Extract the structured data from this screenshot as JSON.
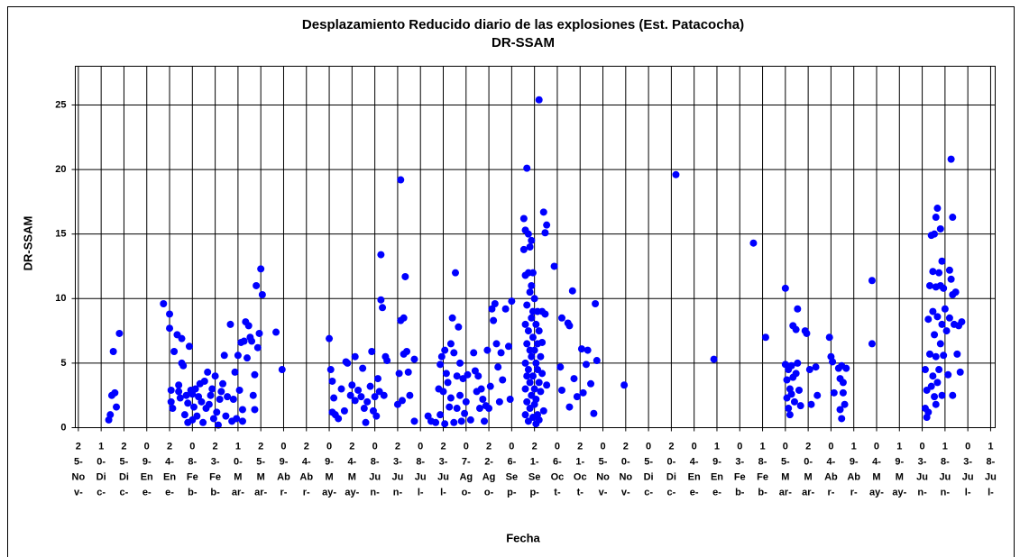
{
  "chart_data": {
    "type": "scatter",
    "title": "Desplazamiento Reducido diario de las explosiones (Est. Patacocha)",
    "subtitle": "DR-SSAM",
    "x_label": "Fecha",
    "y_label": "DR-SSAM",
    "color": "#0000ff",
    "grid": true,
    "xlim": [
      -2,
      603
    ],
    "ylim": [
      0,
      28
    ],
    "yticks": [
      0,
      5,
      10,
      15,
      20,
      25
    ],
    "xticks": [
      {
        "value": 0,
        "label": [
          "2",
          "5-",
          "No",
          "v-"
        ]
      },
      {
        "value": 15,
        "label": [
          "1",
          "0-",
          "Di",
          "c-"
        ]
      },
      {
        "value": 30,
        "label": [
          "2",
          "5-",
          "Di",
          "c-"
        ]
      },
      {
        "value": 45,
        "label": [
          "0",
          "9-",
          "En",
          "e-"
        ]
      },
      {
        "value": 60,
        "label": [
          "2",
          "4-",
          "En",
          "e-"
        ]
      },
      {
        "value": 75,
        "label": [
          "0",
          "8-",
          "Fe",
          "b-"
        ]
      },
      {
        "value": 90,
        "label": [
          "2",
          "3-",
          "Fe",
          "b-"
        ]
      },
      {
        "value": 105,
        "label": [
          "1",
          "0-",
          "M",
          "ar-"
        ]
      },
      {
        "value": 120,
        "label": [
          "2",
          "5-",
          "M",
          "ar-"
        ]
      },
      {
        "value": 135,
        "label": [
          "0",
          "9-",
          "Ab",
          "r-"
        ]
      },
      {
        "value": 150,
        "label": [
          "2",
          "4-",
          "Ab",
          "r-"
        ]
      },
      {
        "value": 165,
        "label": [
          "0",
          "9-",
          "M",
          "ay-"
        ]
      },
      {
        "value": 180,
        "label": [
          "2",
          "4-",
          "M",
          "ay-"
        ]
      },
      {
        "value": 195,
        "label": [
          "0",
          "8-",
          "Ju",
          "n-"
        ]
      },
      {
        "value": 210,
        "label": [
          "2",
          "3-",
          "Ju",
          "n-"
        ]
      },
      {
        "value": 225,
        "label": [
          "0",
          "8-",
          "Ju",
          "l-"
        ]
      },
      {
        "value": 240,
        "label": [
          "2",
          "3-",
          "Ju",
          "l-"
        ]
      },
      {
        "value": 255,
        "label": [
          "0",
          "7-",
          "Ag",
          "o-"
        ]
      },
      {
        "value": 270,
        "label": [
          "2",
          "2-",
          "Ag",
          "o-"
        ]
      },
      {
        "value": 285,
        "label": [
          "0",
          "6-",
          "Se",
          "p-"
        ]
      },
      {
        "value": 300,
        "label": [
          "2",
          "1-",
          "Se",
          "p-"
        ]
      },
      {
        "value": 315,
        "label": [
          "0",
          "6-",
          "Oc",
          "t-"
        ]
      },
      {
        "value": 330,
        "label": [
          "2",
          "1-",
          "Oc",
          "t-"
        ]
      },
      {
        "value": 345,
        "label": [
          "0",
          "5-",
          "No",
          "v-"
        ]
      },
      {
        "value": 360,
        "label": [
          "2",
          "0-",
          "No",
          "v-"
        ]
      },
      {
        "value": 375,
        "label": [
          "0",
          "5-",
          "Di",
          "c-"
        ]
      },
      {
        "value": 390,
        "label": [
          "2",
          "0-",
          "Di",
          "c-"
        ]
      },
      {
        "value": 405,
        "label": [
          "0",
          "4-",
          "En",
          "e-"
        ]
      },
      {
        "value": 420,
        "label": [
          "1",
          "9-",
          "En",
          "e-"
        ]
      },
      {
        "value": 435,
        "label": [
          "0",
          "3-",
          "Fe",
          "b-"
        ]
      },
      {
        "value": 450,
        "label": [
          "1",
          "8-",
          "Fe",
          "b-"
        ]
      },
      {
        "value": 465,
        "label": [
          "0",
          "5-",
          "M",
          "ar-"
        ]
      },
      {
        "value": 480,
        "label": [
          "2",
          "0-",
          "M",
          "ar-"
        ]
      },
      {
        "value": 495,
        "label": [
          "0",
          "4-",
          "Ab",
          "r-"
        ]
      },
      {
        "value": 510,
        "label": [
          "1",
          "9-",
          "Ab",
          "r-"
        ]
      },
      {
        "value": 525,
        "label": [
          "0",
          "4-",
          "M",
          "ay-"
        ]
      },
      {
        "value": 540,
        "label": [
          "1",
          "9-",
          "M",
          "ay-"
        ]
      },
      {
        "value": 555,
        "label": [
          "0",
          "3-",
          "Ju",
          "n-"
        ]
      },
      {
        "value": 570,
        "label": [
          "1",
          "8-",
          "Ju",
          "n-"
        ]
      },
      {
        "value": 585,
        "label": [
          "0",
          "3-",
          "Ju",
          "l-"
        ]
      },
      {
        "value": 600,
        "label": [
          "1",
          "8-",
          "Ju",
          "l-"
        ]
      }
    ],
    "x": [
      20,
      21,
      22,
      23,
      24,
      25,
      27,
      56,
      60,
      60,
      61,
      61,
      62,
      63,
      65,
      66,
      66,
      67,
      68,
      68,
      69,
      70,
      71,
      72,
      72,
      73,
      74,
      75,
      75,
      76,
      77,
      78,
      79,
      80,
      81,
      82,
      83,
      84,
      85,
      86,
      87,
      88,
      89,
      90,
      91,
      92,
      93,
      94,
      95,
      96,
      97,
      98,
      100,
      101,
      102,
      103,
      104,
      105,
      106,
      107,
      108,
      108,
      109,
      110,
      111,
      112,
      113,
      114,
      115,
      116,
      116,
      117,
      118,
      119,
      120,
      121,
      130,
      134,
      165,
      166,
      167,
      167,
      168,
      169,
      171,
      173,
      175,
      176,
      177,
      179,
      180,
      182,
      182,
      184,
      186,
      187,
      188,
      189,
      190,
      192,
      193,
      194,
      195,
      196,
      197,
      198,
      199,
      199,
      200,
      201,
      202,
      203,
      210,
      211,
      212,
      212,
      213,
      214,
      214,
      215,
      216,
      217,
      218,
      221,
      221,
      230,
      232,
      235,
      237,
      238,
      238,
      239,
      240,
      241,
      241,
      242,
      243,
      244,
      245,
      245,
      246,
      247,
      247,
      248,
      249,
      249,
      250,
      251,
      251,
      252,
      253,
      254,
      255,
      256,
      258,
      260,
      261,
      262,
      263,
      264,
      265,
      266,
      267,
      268,
      269,
      270,
      271,
      272,
      273,
      274,
      275,
      276,
      277,
      278,
      279,
      281,
      283,
      284,
      285,
      293,
      293,
      294,
      294,
      294,
      294,
      294,
      294,
      295,
      295,
      295,
      295,
      295,
      296,
      296,
      296,
      296,
      296,
      297,
      297,
      297,
      297,
      297,
      298,
      298,
      298,
      298,
      298,
      299,
      299,
      299,
      299,
      299,
      300,
      300,
      300,
      300,
      301,
      301,
      301,
      301,
      302,
      302,
      302,
      302,
      303,
      303,
      303,
      303,
      304,
      304,
      305,
      305,
      305,
      306,
      306,
      307,
      307,
      308,
      308,
      313,
      317,
      318,
      318,
      322,
      323,
      323,
      325,
      326,
      328,
      331,
      332,
      334,
      335,
      337,
      339,
      340,
      341,
      359,
      393,
      418,
      444,
      452,
      465,
      465,
      466,
      466,
      467,
      467,
      468,
      468,
      469,
      469,
      470,
      470,
      471,
      472,
      472,
      473,
      473,
      474,
      475,
      478,
      479,
      481,
      482,
      485,
      486,
      494,
      495,
      496,
      497,
      500,
      501,
      501,
      502,
      502,
      503,
      503,
      504,
      505,
      522,
      522,
      557,
      557,
      558,
      558,
      559,
      559,
      560,
      560,
      561,
      561,
      562,
      562,
      562,
      563,
      563,
      563,
      564,
      564,
      564,
      564,
      565,
      565,
      565,
      566,
      566,
      567,
      567,
      567,
      568,
      568,
      568,
      569,
      569,
      570,
      571,
      572,
      573,
      573,
      574,
      574,
      575,
      575,
      575,
      576,
      577,
      578,
      579,
      580,
      581
    ],
    "values": [
      0.6,
      1,
      2.5,
      5.9,
      2.7,
      1.6,
      7.3,
      9.6,
      8.8,
      7.7,
      2.9,
      2,
      1.5,
      5.9,
      7.2,
      2.8,
      3.3,
      2.3,
      6.9,
      5,
      4.8,
      1,
      2.5,
      0.4,
      1.9,
      6.3,
      2.9,
      2.6,
      0.6,
      1.6,
      3,
      0.9,
      2.4,
      3.4,
      2,
      0.4,
      3.6,
      1.5,
      4.3,
      1.8,
      2.5,
      3,
      0.7,
      4,
      1.2,
      0.2,
      2.2,
      2.8,
      3.4,
      5.6,
      0.9,
      2.4,
      8,
      0.5,
      2.2,
      4.3,
      0.7,
      5.6,
      2.9,
      6.6,
      0.5,
      1.4,
      6.7,
      8.2,
      5.4,
      7.9,
      7,
      6.7,
      2.5,
      4.1,
      1.4,
      11,
      6.2,
      7.3,
      12.3,
      10.3,
      7.4,
      4.5,
      6.9,
      4.5,
      1.2,
      3.6,
      2.3,
      1,
      0.7,
      3,
      1.3,
      5.1,
      5,
      2.5,
      3.3,
      5.5,
      2.1,
      2.9,
      2.4,
      4.6,
      1.5,
      0.4,
      2,
      3.2,
      5.9,
      1.3,
      2.4,
      0.9,
      3.8,
      2.8,
      13.4,
      9.9,
      9.3,
      2.5,
      5.5,
      5.2,
      1.8,
      4.2,
      19.2,
      8.3,
      2.1,
      8.5,
      5.7,
      11.7,
      5.9,
      4.3,
      2.5,
      5.3,
      0.5,
      0.9,
      0.5,
      0.4,
      3,
      4.9,
      1,
      5.5,
      2.8,
      6,
      0.3,
      4.2,
      3.5,
      1.6,
      6.5,
      2.3,
      8.5,
      5.8,
      0.4,
      12,
      4,
      1.5,
      7.8,
      5,
      2.5,
      0.5,
      3.8,
      1.1,
      2,
      4.1,
      0.6,
      5.8,
      4.4,
      2.8,
      4,
      1.5,
      3,
      2.2,
      0.5,
      1.7,
      6,
      1.5,
      3.2,
      9.2,
      8.3,
      9.6,
      6.5,
      4.7,
      2,
      5.8,
      3.7,
      9.2,
      6.3,
      2.2,
      9.8,
      16.2,
      13.8,
      15.3,
      11.8,
      8,
      5,
      3,
      1,
      20.1,
      9.5,
      6.5,
      4,
      2,
      15,
      12,
      7.5,
      4.5,
      0.5,
      14,
      10.5,
      6,
      3.5,
      1.5,
      14.5,
      11,
      8.5,
      5.5,
      2.5,
      12,
      9,
      7,
      4,
      0.8,
      10,
      6,
      3,
      1.8,
      8,
      5,
      2.2,
      0.3,
      9,
      6.5,
      4.5,
      1,
      25.4,
      7.5,
      3.5,
      0.6,
      5.5,
      2.8,
      9,
      6.6,
      4.2,
      16.7,
      1.3,
      15.1,
      8.8,
      15.7,
      3.3,
      12.5,
      4.7,
      8.5,
      2.9,
      8.1,
      1.6,
      7.9,
      10.6,
      3.8,
      2.4,
      6.1,
      2.7,
      4.9,
      6,
      3.4,
      1.1,
      9.6,
      5.2,
      3.3,
      19.6,
      5.3,
      14.3,
      7,
      10.8,
      4.9,
      3.7,
      2.3,
      4.5,
      1.5,
      3,
      1,
      4.8,
      2.6,
      7.9,
      3.9,
      2,
      7.6,
      4.2,
      9.2,
      5,
      2.9,
      1.7,
      7.5,
      7.3,
      4.5,
      1.8,
      4.7,
      2.5,
      7,
      5.5,
      5.1,
      2.7,
      4.6,
      3.8,
      1.4,
      4.8,
      0.7,
      3.5,
      2.7,
      1.8,
      4.6,
      11.4,
      6.5,
      4.5,
      1.5,
      0.8,
      2.9,
      8.4,
      1.2,
      11,
      5.7,
      14.9,
      3.2,
      12.1,
      9,
      4,
      15,
      7.2,
      2.4,
      16.3,
      10.9,
      5.5,
      1.8,
      17,
      8.6,
      3.5,
      12,
      4.5,
      15.4,
      11,
      6.5,
      12.9,
      8,
      2.5,
      10.8,
      5.6,
      9.2,
      7.5,
      4.1,
      12.2,
      8.5,
      20.8,
      11.5,
      16.3,
      10.3,
      2.5,
      8,
      10.5,
      5.7,
      7.9,
      4.3,
      8.2
    ]
  }
}
